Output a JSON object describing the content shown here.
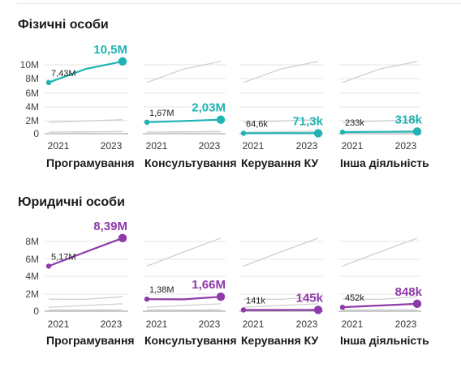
{
  "colors": {
    "physical": "#1fb3b3",
    "legal": "#8e3aa8",
    "context": "#cfcfcf",
    "grid": "#e4e4e4"
  },
  "chart_data": [
    {
      "type": "line",
      "title": "Фізичні особи",
      "x": [
        2021,
        2022,
        2023
      ],
      "x_tick_labels": [
        "2021",
        "2023"
      ],
      "y_tick_labels": [
        "0",
        "2M",
        "4M",
        "6M",
        "8M",
        "10M"
      ],
      "ylim": [
        0,
        10500000
      ],
      "y_ticks": [
        0,
        2000000,
        4000000,
        6000000,
        8000000,
        10000000
      ],
      "panels": [
        {
          "category": "Програмування",
          "values": [
            7430000,
            9400000,
            10500000
          ],
          "start_label": "7,43M",
          "end_label": "10,5M"
        },
        {
          "category": "Консультування",
          "values": [
            1670000,
            1850000,
            2030000
          ],
          "start_label": "1,67M",
          "end_label": "2,03M"
        },
        {
          "category": "Керування КУ",
          "values": [
            64600,
            68000,
            71300
          ],
          "start_label": "64,6k",
          "end_label": "71,3k"
        },
        {
          "category": "Інша діяльність",
          "values": [
            233000,
            275000,
            318000
          ],
          "start_label": "233k",
          "end_label": "318k"
        }
      ]
    },
    {
      "type": "line",
      "title": "Юридичні особи",
      "x": [
        2021,
        2022,
        2023
      ],
      "x_tick_labels": [
        "2021",
        "2023"
      ],
      "y_tick_labels": [
        "0",
        "2M",
        "4M",
        "6M",
        "8M"
      ],
      "ylim": [
        0,
        8700000
      ],
      "y_ticks": [
        0,
        2000000,
        4000000,
        6000000,
        8000000
      ],
      "panels": [
        {
          "category": "Програмування",
          "values": [
            5170000,
            6800000,
            8390000
          ],
          "start_label": "5,17M",
          "end_label": "8,39M"
        },
        {
          "category": "Консультування",
          "values": [
            1380000,
            1360000,
            1660000
          ],
          "start_label": "1,38M",
          "end_label": "1,66M"
        },
        {
          "category": "Керування КУ",
          "values": [
            141000,
            143000,
            145000
          ],
          "start_label": "141k",
          "end_label": "145k"
        },
        {
          "category": "Інша діяльність",
          "values": [
            452000,
            650000,
            848000
          ],
          "start_label": "452k",
          "end_label": "848k"
        }
      ]
    }
  ]
}
